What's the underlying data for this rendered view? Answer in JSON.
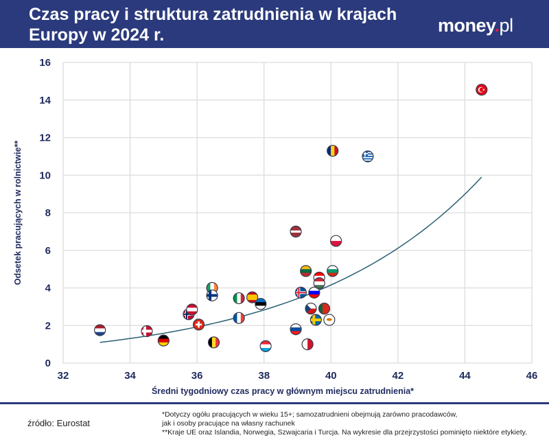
{
  "header": {
    "title": "Czas pracy i struktura zatrudnienia w krajach Europy w 2024 r.",
    "logo_main": "money",
    "logo_dot": ".",
    "logo_suffix": "pl",
    "background": "#2b3a7c"
  },
  "chart_data": {
    "type": "scatter",
    "title": "Czas pracy i struktura zatrudnienia w krajach Europy w 2024 r.",
    "xlabel": "Średni tygodniowy czas pracy w głównym miejscu zatrudnienia*",
    "ylabel": "Odsetek pracujących w rolnictwie**",
    "xlim": [
      32,
      46
    ],
    "ylim": [
      0,
      16
    ],
    "xticks": [
      32,
      34,
      36,
      38,
      40,
      42,
      44,
      46
    ],
    "yticks": [
      0,
      2,
      4,
      6,
      8,
      10,
      12,
      14,
      16
    ],
    "grid": true,
    "marker": "country-flag",
    "trendline": {
      "type": "exponential",
      "color": "#2a5f73",
      "x_range": [
        33.1,
        44.5
      ],
      "endpoints_y": [
        1.1,
        9.9
      ]
    },
    "points": [
      {
        "icon": "flag-nl",
        "x": 33.1,
        "y": 1.75,
        "stripes": "h",
        "colors": [
          "#ae1c28",
          "#ffffff",
          "#21468b"
        ]
      },
      {
        "icon": "flag-dk",
        "x": 34.5,
        "y": 1.7,
        "cross": "nordic",
        "colors": [
          "#c8102e",
          "#ffffff"
        ]
      },
      {
        "icon": "flag-de",
        "x": 35.0,
        "y": 1.2,
        "stripes": "h",
        "colors": [
          "#000000",
          "#dd0000",
          "#ffce00"
        ]
      },
      {
        "icon": "flag-no",
        "x": 35.75,
        "y": 2.6,
        "cross": "nordic",
        "colors": [
          "#ba0c2f",
          "#ffffff",
          "#00205b"
        ]
      },
      {
        "icon": "flag-at",
        "x": 35.85,
        "y": 2.85,
        "stripes": "h",
        "colors": [
          "#c8102e",
          "#ffffff",
          "#c8102e"
        ]
      },
      {
        "icon": "flag-ch",
        "x": 36.05,
        "y": 2.05,
        "cross": "swiss",
        "colors": [
          "#da291c",
          "#ffffff"
        ]
      },
      {
        "icon": "flag-ie",
        "x": 36.45,
        "y": 4.0,
        "stripes": "v",
        "colors": [
          "#169b62",
          "#ffffff",
          "#ff883e"
        ]
      },
      {
        "icon": "flag-fi",
        "x": 36.45,
        "y": 3.6,
        "cross": "nordic",
        "colors": [
          "#ffffff",
          "#003580"
        ]
      },
      {
        "icon": "flag-be",
        "x": 36.5,
        "y": 1.1,
        "stripes": "v",
        "colors": [
          "#000000",
          "#fdda24",
          "#ef3340"
        ]
      },
      {
        "icon": "flag-it",
        "x": 37.25,
        "y": 3.45,
        "stripes": "v",
        "colors": [
          "#009246",
          "#ffffff",
          "#ce2b37"
        ]
      },
      {
        "icon": "flag-fr",
        "x": 37.25,
        "y": 2.4,
        "stripes": "v",
        "colors": [
          "#0055a4",
          "#ffffff",
          "#ef4135"
        ]
      },
      {
        "icon": "flag-es",
        "x": 37.65,
        "y": 3.5,
        "stripes": "h",
        "colors": [
          "#c60b1e",
          "#ffc400",
          "#ffc400",
          "#c60b1e"
        ]
      },
      {
        "icon": "flag-ee",
        "x": 37.9,
        "y": 3.15,
        "stripes": "h",
        "colors": [
          "#0072ce",
          "#000000",
          "#ffffff"
        ]
      },
      {
        "icon": "flag-lu",
        "x": 38.05,
        "y": 0.9,
        "stripes": "h",
        "colors": [
          "#ed2939",
          "#ffffff",
          "#00a1de"
        ]
      },
      {
        "icon": "flag-lv",
        "x": 38.95,
        "y": 7.0,
        "stripes": "h",
        "colors": [
          "#9e3039",
          "#9e3039",
          "#ffffff",
          "#9e3039",
          "#9e3039"
        ]
      },
      {
        "icon": "flag-sk",
        "x": 38.95,
        "y": 1.8,
        "stripes": "h",
        "colors": [
          "#ffffff",
          "#0b4ea2",
          "#ee1c25"
        ]
      },
      {
        "icon": "flag-is",
        "x": 39.1,
        "y": 3.75,
        "cross": "nordic",
        "colors": [
          "#02529c",
          "#ffffff",
          "#dc1e35"
        ]
      },
      {
        "icon": "flag-lt",
        "x": 39.25,
        "y": 4.9,
        "stripes": "h",
        "colors": [
          "#fdb913",
          "#006a44",
          "#c1272d"
        ]
      },
      {
        "icon": "flag-mt",
        "x": 39.3,
        "y": 1.0,
        "stripes": "v",
        "colors": [
          "#ffffff",
          "#cf142b"
        ]
      },
      {
        "icon": "flag-cz",
        "x": 39.4,
        "y": 2.9,
        "stripes": "h",
        "colors": [
          "#ffffff",
          "#d7141a"
        ],
        "triangle": "#11457e"
      },
      {
        "icon": "flag-si",
        "x": 39.5,
        "y": 3.75,
        "stripes": "h",
        "colors": [
          "#ffffff",
          "#0000ff",
          "#ff0000"
        ]
      },
      {
        "icon": "flag-se",
        "x": 39.55,
        "y": 2.3,
        "cross": "nordic",
        "colors": [
          "#006aa7",
          "#fecc00"
        ]
      },
      {
        "icon": "flag-hr",
        "x": 39.65,
        "y": 4.55,
        "stripes": "h",
        "colors": [
          "#ff0000",
          "#ffffff",
          "#171796"
        ]
      },
      {
        "icon": "flag-hu",
        "x": 39.65,
        "y": 4.25,
        "stripes": "h",
        "colors": [
          "#ce2939",
          "#ffffff",
          "#477050"
        ]
      },
      {
        "icon": "flag-pt",
        "x": 39.8,
        "y": 2.9,
        "stripes": "v",
        "colors": [
          "#046a38",
          "#da291c",
          "#da291c"
        ]
      },
      {
        "icon": "flag-cy",
        "x": 39.95,
        "y": 2.3,
        "stripes": "h",
        "colors": [
          "#ffffff"
        ],
        "emblem": "#d57800"
      },
      {
        "icon": "flag-bg",
        "x": 40.05,
        "y": 4.9,
        "stripes": "h",
        "colors": [
          "#ffffff",
          "#00966e",
          "#d62612"
        ]
      },
      {
        "icon": "flag-ro",
        "x": 40.05,
        "y": 11.3,
        "stripes": "v",
        "colors": [
          "#002b7f",
          "#fcd116",
          "#ce1126"
        ]
      },
      {
        "icon": "flag-pl",
        "x": 40.15,
        "y": 6.5,
        "stripes": "h",
        "colors": [
          "#ffffff",
          "#dc143c"
        ]
      },
      {
        "icon": "flag-gr",
        "x": 41.1,
        "y": 11.0,
        "stripes": "h",
        "colors": [
          "#0d5eaf",
          "#ffffff",
          "#0d5eaf",
          "#ffffff",
          "#0d5eaf",
          "#ffffff",
          "#0d5eaf",
          "#ffffff",
          "#0d5eaf"
        ],
        "canton": "#0d5eaf"
      },
      {
        "icon": "flag-tr",
        "x": 44.5,
        "y": 14.55,
        "stripes": "h",
        "colors": [
          "#e30a17"
        ],
        "emblem": "#ffffff"
      }
    ]
  },
  "footer": {
    "source": "źródło: Eurostat",
    "note1": "*Dotyczy ogółu pracujących w wieku 15+; samozatrudnieni obejmują zarówno pracodawców,",
    "note2": "jak i osoby pracujące na własny rachunek",
    "note3": "**Kraje UE oraz Islandia, Norwegia, Szwajcaria i Turcja. Na wykresie dla przejrzystości pominięto niektóre etykiety."
  }
}
